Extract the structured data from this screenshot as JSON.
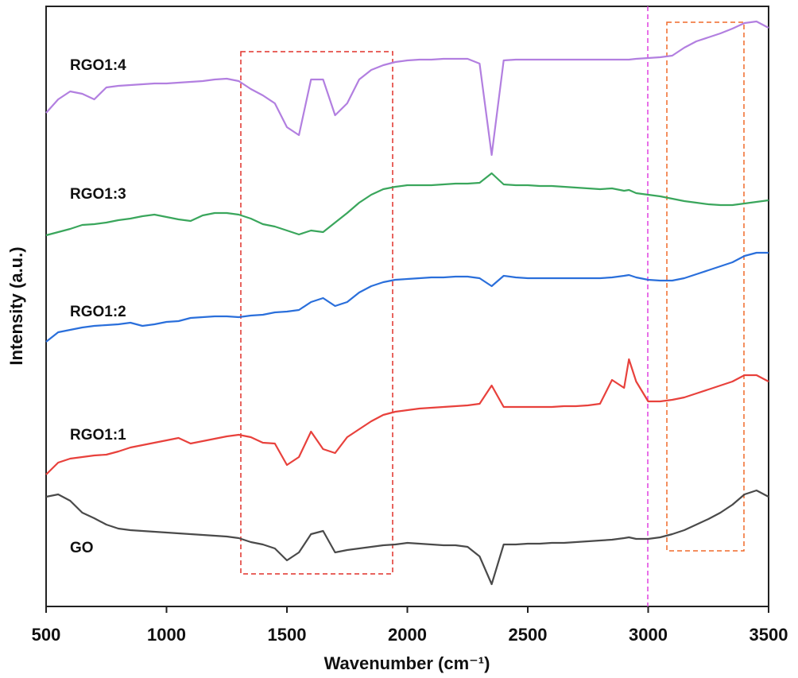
{
  "chart_data": {
    "type": "line",
    "xlabel": "Wavenumber (cm⁻¹)",
    "ylabel": "Intensity (a.u.)",
    "xlim": [
      500,
      3500
    ],
    "xticks": [
      500,
      1000,
      1500,
      2000,
      2500,
      3000,
      3500
    ],
    "ylim": [
      0,
      755
    ],
    "x": [
      500,
      550,
      600,
      650,
      700,
      750,
      800,
      850,
      900,
      950,
      1000,
      1050,
      1100,
      1150,
      1200,
      1250,
      1300,
      1350,
      1400,
      1450,
      1500,
      1550,
      1600,
      1650,
      1700,
      1750,
      1800,
      1850,
      1900,
      1950,
      2000,
      2050,
      2100,
      2150,
      2200,
      2250,
      2300,
      2350,
      2400,
      2450,
      2500,
      2550,
      2600,
      2650,
      2700,
      2750,
      2800,
      2850,
      2900,
      2920,
      2950,
      3000,
      3050,
      3100,
      3150,
      3200,
      3250,
      3300,
      3350,
      3400,
      3450,
      3500
    ],
    "series": [
      {
        "name": "GO",
        "color": "#4a4a4a",
        "values": [
          138,
          141,
          133,
          118,
          111,
          103,
          98,
          96,
          95,
          94,
          93,
          92,
          91,
          90,
          89,
          88,
          86,
          81,
          78,
          73,
          58,
          68,
          91,
          95,
          68,
          71,
          73,
          75,
          77,
          78,
          80,
          79,
          78,
          77,
          77,
          75,
          63,
          28,
          78,
          78,
          79,
          79,
          80,
          80,
          81,
          82,
          83,
          84,
          86,
          87,
          85,
          85,
          87,
          91,
          96,
          103,
          110,
          118,
          128,
          141,
          146,
          138
        ]
      },
      {
        "name": "RGO1:1",
        "color": "#e8413c",
        "values": [
          166,
          181,
          186,
          188,
          190,
          191,
          195,
          200,
          203,
          206,
          209,
          212,
          205,
          208,
          211,
          214,
          216,
          213,
          206,
          205,
          178,
          188,
          220,
          198,
          193,
          213,
          223,
          233,
          241,
          245,
          247,
          249,
          250,
          251,
          252,
          253,
          255,
          278,
          251,
          251,
          251,
          251,
          251,
          252,
          252,
          253,
          255,
          285,
          275,
          311,
          283,
          258,
          258,
          260,
          263,
          268,
          273,
          278,
          283,
          291,
          291,
          283
        ]
      },
      {
        "name": "RGO1:2",
        "color": "#2a6fdb",
        "values": [
          333,
          345,
          348,
          351,
          353,
          354,
          355,
          357,
          353,
          355,
          358,
          359,
          363,
          364,
          365,
          365,
          364,
          366,
          367,
          370,
          371,
          373,
          383,
          388,
          378,
          383,
          395,
          403,
          408,
          411,
          412,
          413,
          414,
          414,
          415,
          415,
          413,
          403,
          416,
          414,
          413,
          413,
          413,
          413,
          413,
          413,
          413,
          414,
          416,
          417,
          414,
          411,
          410,
          410,
          413,
          418,
          423,
          428,
          433,
          441,
          445,
          445
        ]
      },
      {
        "name": "RGO1:3",
        "color": "#3aa65c",
        "values": [
          467,
          471,
          475,
          480,
          481,
          483,
          486,
          488,
          491,
          493,
          490,
          487,
          485,
          492,
          495,
          495,
          493,
          488,
          481,
          478,
          473,
          468,
          473,
          471,
          483,
          495,
          508,
          518,
          525,
          528,
          530,
          530,
          530,
          531,
          532,
          532,
          533,
          545,
          531,
          530,
          530,
          529,
          529,
          528,
          527,
          526,
          525,
          526,
          523,
          524,
          520,
          518,
          516,
          513,
          510,
          508,
          506,
          505,
          505,
          507,
          509,
          511
        ]
      },
      {
        "name": "RGO1:4",
        "color": "#b27fe0",
        "values": [
          621,
          638,
          648,
          645,
          638,
          653,
          655,
          656,
          657,
          658,
          658,
          659,
          660,
          661,
          663,
          664,
          661,
          651,
          643,
          633,
          603,
          593,
          663,
          663,
          618,
          633,
          663,
          675,
          681,
          685,
          687,
          688,
          688,
          689,
          689,
          689,
          683,
          568,
          687,
          688,
          688,
          688,
          688,
          688,
          688,
          688,
          688,
          688,
          688,
          688,
          689,
          690,
          691,
          693,
          703,
          711,
          716,
          721,
          727,
          734,
          736,
          728
        ]
      }
    ]
  }
}
